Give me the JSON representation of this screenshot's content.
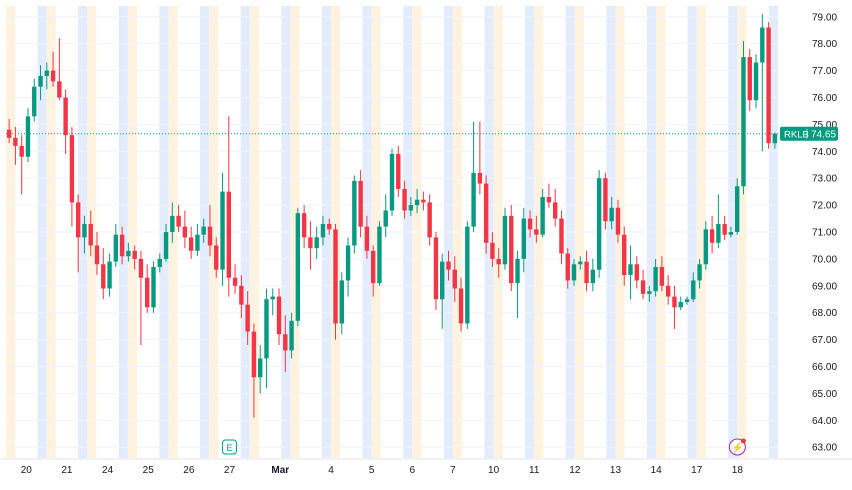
{
  "colors": {
    "up": "#089981",
    "down": "#f23645",
    "premarket_band": "#fff3e0",
    "postmarket_band": "#e3ecfd",
    "axis_text": "#131722",
    "price_line": "#089981",
    "earnings_badge": "#089981",
    "event_badge": "#9c27b0"
  },
  "chart_data": {
    "type": "candlestick",
    "symbol": "RKLB",
    "last_price": "74.65",
    "ylim": [
      62.6,
      79.4
    ],
    "y_ticks": [
      "63.00",
      "64.00",
      "65.00",
      "66.00",
      "67.00",
      "68.00",
      "69.00",
      "70.00",
      "71.00",
      "72.00",
      "73.00",
      "74.00",
      "75.00",
      "76.00",
      "77.00",
      "78.00",
      "79.00"
    ],
    "x_ticks": [
      "20",
      "21",
      "24",
      "25",
      "26",
      "27",
      "Mar",
      "4",
      "5",
      "6",
      "7",
      "10",
      "11",
      "12",
      "13",
      "14",
      "17",
      "18"
    ],
    "x_tick_bold": [
      false,
      false,
      false,
      false,
      false,
      false,
      true,
      false,
      false,
      false,
      false,
      false,
      false,
      false,
      false,
      false,
      false,
      false
    ],
    "x_tick_pos": [
      1.0,
      3.0,
      5.0,
      7.0,
      9.0,
      11.0,
      13.5,
      16.0,
      18.0,
      20.0,
      22.0,
      24.0,
      26.0,
      28.0,
      30.0,
      32.0,
      34.0,
      36.0
    ],
    "session_bands": true,
    "events": [
      {
        "label": "E",
        "slot": 11.0
      },
      {
        "label": "⚡",
        "slot": 36.0
      }
    ],
    "bars": [
      {
        "o": 74.8,
        "h": 75.2,
        "l": 74.3,
        "c": 74.5
      },
      {
        "o": 74.5,
        "h": 74.9,
        "l": 73.5,
        "c": 74.2
      },
      {
        "o": 74.2,
        "h": 74.6,
        "l": 72.4,
        "c": 73.8
      },
      {
        "o": 73.8,
        "h": 75.6,
        "l": 73.6,
        "c": 75.3
      },
      {
        "o": 75.3,
        "h": 76.7,
        "l": 75.1,
        "c": 76.4
      },
      {
        "o": 76.4,
        "h": 77.2,
        "l": 75.9,
        "c": 76.8
      },
      {
        "o": 76.8,
        "h": 77.3,
        "l": 76.3,
        "c": 77.0
      },
      {
        "o": 77.0,
        "h": 77.7,
        "l": 76.4,
        "c": 76.6
      },
      {
        "o": 76.6,
        "h": 78.2,
        "l": 75.9,
        "c": 76.0
      },
      {
        "o": 76.0,
        "h": 76.3,
        "l": 73.9,
        "c": 74.6
      },
      {
        "o": 74.6,
        "h": 74.9,
        "l": 71.2,
        "c": 72.1
      },
      {
        "o": 72.1,
        "h": 72.4,
        "l": 69.5,
        "c": 70.8
      },
      {
        "o": 70.8,
        "h": 71.6,
        "l": 70.2,
        "c": 71.3
      },
      {
        "o": 71.3,
        "h": 71.8,
        "l": 70.1,
        "c": 70.5
      },
      {
        "o": 70.5,
        "h": 71.0,
        "l": 69.4,
        "c": 69.8
      },
      {
        "o": 69.8,
        "h": 70.4,
        "l": 68.5,
        "c": 68.9
      },
      {
        "o": 68.9,
        "h": 70.2,
        "l": 68.6,
        "c": 69.9
      },
      {
        "o": 69.9,
        "h": 71.3,
        "l": 69.7,
        "c": 70.9
      },
      {
        "o": 70.9,
        "h": 71.2,
        "l": 69.8,
        "c": 70.1
      },
      {
        "o": 70.1,
        "h": 70.6,
        "l": 69.9,
        "c": 70.3
      },
      {
        "o": 70.3,
        "h": 70.5,
        "l": 69.6,
        "c": 70.0
      },
      {
        "o": 70.0,
        "h": 70.3,
        "l": 66.8,
        "c": 69.3
      },
      {
        "o": 69.3,
        "h": 69.8,
        "l": 68.0,
        "c": 68.2
      },
      {
        "o": 68.2,
        "h": 69.9,
        "l": 68.0,
        "c": 69.7
      },
      {
        "o": 69.7,
        "h": 70.2,
        "l": 69.5,
        "c": 70.0
      },
      {
        "o": 70.0,
        "h": 71.3,
        "l": 69.9,
        "c": 71.0
      },
      {
        "o": 71.0,
        "h": 72.1,
        "l": 70.6,
        "c": 71.6
      },
      {
        "o": 71.6,
        "h": 72.0,
        "l": 71.0,
        "c": 71.2
      },
      {
        "o": 71.2,
        "h": 71.8,
        "l": 70.4,
        "c": 70.8
      },
      {
        "o": 70.8,
        "h": 71.2,
        "l": 70.0,
        "c": 70.3
      },
      {
        "o": 70.3,
        "h": 71.3,
        "l": 70.1,
        "c": 70.9
      },
      {
        "o": 70.9,
        "h": 71.5,
        "l": 70.6,
        "c": 71.2
      },
      {
        "o": 71.2,
        "h": 72.0,
        "l": 70.1,
        "c": 70.5
      },
      {
        "o": 70.5,
        "h": 70.8,
        "l": 69.3,
        "c": 69.6
      },
      {
        "o": 69.6,
        "h": 73.2,
        "l": 69.0,
        "c": 72.5
      },
      {
        "o": 72.5,
        "h": 75.3,
        "l": 68.6,
        "c": 69.3
      },
      {
        "o": 69.3,
        "h": 69.8,
        "l": 68.7,
        "c": 69.0
      },
      {
        "o": 69.0,
        "h": 69.4,
        "l": 67.8,
        "c": 68.3
      },
      {
        "o": 68.3,
        "h": 68.8,
        "l": 66.8,
        "c": 67.3
      },
      {
        "o": 67.3,
        "h": 67.6,
        "l": 64.1,
        "c": 65.6
      },
      {
        "o": 65.6,
        "h": 66.8,
        "l": 65.0,
        "c": 66.3
      },
      {
        "o": 66.3,
        "h": 68.9,
        "l": 65.2,
        "c": 68.5
      },
      {
        "o": 68.5,
        "h": 68.9,
        "l": 67.9,
        "c": 68.6
      },
      {
        "o": 68.6,
        "h": 68.9,
        "l": 66.8,
        "c": 67.2
      },
      {
        "o": 67.2,
        "h": 67.9,
        "l": 65.8,
        "c": 66.6
      },
      {
        "o": 66.6,
        "h": 68.0,
        "l": 66.3,
        "c": 67.7
      },
      {
        "o": 67.7,
        "h": 71.9,
        "l": 67.5,
        "c": 71.7
      },
      {
        "o": 71.7,
        "h": 72.0,
        "l": 70.4,
        "c": 70.8
      },
      {
        "o": 70.8,
        "h": 71.4,
        "l": 69.6,
        "c": 70.4
      },
      {
        "o": 70.4,
        "h": 71.2,
        "l": 70.0,
        "c": 70.8
      },
      {
        "o": 70.8,
        "h": 71.6,
        "l": 70.5,
        "c": 71.3
      },
      {
        "o": 71.3,
        "h": 71.5,
        "l": 70.9,
        "c": 71.1
      },
      {
        "o": 71.1,
        "h": 71.3,
        "l": 67.0,
        "c": 67.6
      },
      {
        "o": 67.6,
        "h": 69.5,
        "l": 67.2,
        "c": 69.2
      },
      {
        "o": 69.2,
        "h": 70.8,
        "l": 68.6,
        "c": 70.5
      },
      {
        "o": 70.5,
        "h": 73.1,
        "l": 70.2,
        "c": 72.9
      },
      {
        "o": 72.9,
        "h": 73.3,
        "l": 70.8,
        "c": 71.2
      },
      {
        "o": 71.2,
        "h": 71.6,
        "l": 70.0,
        "c": 70.3
      },
      {
        "o": 70.3,
        "h": 70.5,
        "l": 68.6,
        "c": 69.1
      },
      {
        "o": 69.1,
        "h": 71.4,
        "l": 69.0,
        "c": 71.2
      },
      {
        "o": 71.2,
        "h": 72.4,
        "l": 70.8,
        "c": 71.8
      },
      {
        "o": 71.8,
        "h": 74.1,
        "l": 71.6,
        "c": 73.9
      },
      {
        "o": 73.9,
        "h": 74.2,
        "l": 72.3,
        "c": 72.6
      },
      {
        "o": 72.6,
        "h": 72.9,
        "l": 71.5,
        "c": 71.8
      },
      {
        "o": 71.8,
        "h": 72.3,
        "l": 71.6,
        "c": 72.0
      },
      {
        "o": 72.0,
        "h": 72.6,
        "l": 71.7,
        "c": 72.2
      },
      {
        "o": 72.2,
        "h": 72.5,
        "l": 71.8,
        "c": 72.1
      },
      {
        "o": 72.1,
        "h": 72.4,
        "l": 70.5,
        "c": 70.8
      },
      {
        "o": 70.8,
        "h": 71.0,
        "l": 68.1,
        "c": 68.5
      },
      {
        "o": 68.5,
        "h": 70.2,
        "l": 67.4,
        "c": 69.9
      },
      {
        "o": 69.9,
        "h": 70.3,
        "l": 69.2,
        "c": 69.6
      },
      {
        "o": 69.6,
        "h": 70.1,
        "l": 68.4,
        "c": 68.9
      },
      {
        "o": 68.9,
        "h": 69.3,
        "l": 67.3,
        "c": 67.6
      },
      {
        "o": 67.6,
        "h": 71.4,
        "l": 67.4,
        "c": 71.2
      },
      {
        "o": 71.2,
        "h": 75.1,
        "l": 71.0,
        "c": 73.2
      },
      {
        "o": 73.2,
        "h": 75.1,
        "l": 72.4,
        "c": 72.8
      },
      {
        "o": 72.8,
        "h": 73.1,
        "l": 70.2,
        "c": 70.6
      },
      {
        "o": 70.6,
        "h": 71.0,
        "l": 69.7,
        "c": 70.0
      },
      {
        "o": 70.0,
        "h": 70.4,
        "l": 69.3,
        "c": 69.8
      },
      {
        "o": 69.8,
        "h": 71.9,
        "l": 69.6,
        "c": 71.6
      },
      {
        "o": 71.6,
        "h": 72.0,
        "l": 68.8,
        "c": 69.1
      },
      {
        "o": 69.1,
        "h": 70.3,
        "l": 67.8,
        "c": 70.0
      },
      {
        "o": 70.0,
        "h": 71.9,
        "l": 69.5,
        "c": 71.5
      },
      {
        "o": 71.5,
        "h": 71.8,
        "l": 70.8,
        "c": 71.1
      },
      {
        "o": 71.1,
        "h": 71.6,
        "l": 70.6,
        "c": 70.9
      },
      {
        "o": 70.9,
        "h": 72.6,
        "l": 70.8,
        "c": 72.3
      },
      {
        "o": 72.3,
        "h": 72.8,
        "l": 71.9,
        "c": 72.1
      },
      {
        "o": 72.1,
        "h": 72.6,
        "l": 71.2,
        "c": 71.5
      },
      {
        "o": 71.5,
        "h": 71.8,
        "l": 69.8,
        "c": 70.2
      },
      {
        "o": 70.2,
        "h": 70.4,
        "l": 68.9,
        "c": 69.2
      },
      {
        "o": 69.2,
        "h": 70.0,
        "l": 69.0,
        "c": 69.8
      },
      {
        "o": 69.8,
        "h": 70.1,
        "l": 69.6,
        "c": 69.9
      },
      {
        "o": 69.9,
        "h": 70.3,
        "l": 68.8,
        "c": 69.1
      },
      {
        "o": 69.1,
        "h": 70.0,
        "l": 68.8,
        "c": 69.6
      },
      {
        "o": 69.6,
        "h": 73.3,
        "l": 69.3,
        "c": 73.0
      },
      {
        "o": 73.0,
        "h": 73.2,
        "l": 71.1,
        "c": 71.4
      },
      {
        "o": 71.4,
        "h": 72.3,
        "l": 71.1,
        "c": 71.9
      },
      {
        "o": 71.9,
        "h": 72.2,
        "l": 70.6,
        "c": 70.9
      },
      {
        "o": 70.9,
        "h": 71.2,
        "l": 69.0,
        "c": 69.4
      },
      {
        "o": 69.4,
        "h": 70.5,
        "l": 68.5,
        "c": 69.8
      },
      {
        "o": 69.8,
        "h": 70.1,
        "l": 68.9,
        "c": 69.2
      },
      {
        "o": 69.2,
        "h": 69.6,
        "l": 68.5,
        "c": 68.7
      },
      {
        "o": 68.7,
        "h": 69.0,
        "l": 68.4,
        "c": 68.8
      },
      {
        "o": 68.8,
        "h": 70.0,
        "l": 68.6,
        "c": 69.7
      },
      {
        "o": 69.7,
        "h": 70.1,
        "l": 68.8,
        "c": 69.0
      },
      {
        "o": 69.0,
        "h": 69.4,
        "l": 68.3,
        "c": 68.6
      },
      {
        "o": 68.6,
        "h": 69.0,
        "l": 67.4,
        "c": 68.2
      },
      {
        "o": 68.2,
        "h": 68.6,
        "l": 68.1,
        "c": 68.4
      },
      {
        "o": 68.4,
        "h": 68.6,
        "l": 68.3,
        "c": 68.5
      },
      {
        "o": 68.5,
        "h": 69.5,
        "l": 68.4,
        "c": 69.2
      },
      {
        "o": 69.2,
        "h": 70.0,
        "l": 68.9,
        "c": 69.8
      },
      {
        "o": 69.8,
        "h": 71.4,
        "l": 69.6,
        "c": 71.1
      },
      {
        "o": 71.1,
        "h": 71.6,
        "l": 70.2,
        "c": 70.6
      },
      {
        "o": 70.6,
        "h": 72.4,
        "l": 70.4,
        "c": 71.3
      },
      {
        "o": 71.3,
        "h": 71.6,
        "l": 70.7,
        "c": 70.9
      },
      {
        "o": 70.9,
        "h": 71.2,
        "l": 70.8,
        "c": 71.0
      },
      {
        "o": 71.0,
        "h": 73.0,
        "l": 70.9,
        "c": 72.7
      },
      {
        "o": 72.7,
        "h": 78.1,
        "l": 72.4,
        "c": 77.5
      },
      {
        "o": 77.5,
        "h": 77.8,
        "l": 75.5,
        "c": 75.9
      },
      {
        "o": 75.9,
        "h": 77.6,
        "l": 75.6,
        "c": 77.3
      },
      {
        "o": 77.3,
        "h": 79.1,
        "l": 74.0,
        "c": 78.6
      },
      {
        "o": 78.6,
        "h": 78.8,
        "l": 74.1,
        "c": 74.3
      },
      {
        "o": 74.3,
        "h": 74.7,
        "l": 74.1,
        "c": 74.65
      }
    ]
  }
}
